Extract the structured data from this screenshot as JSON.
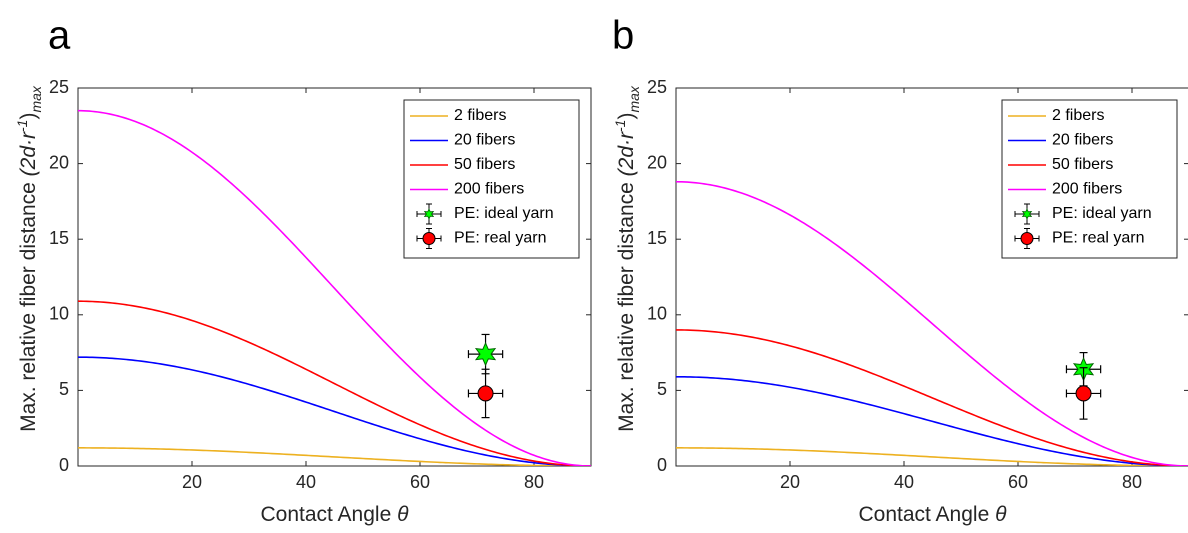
{
  "chart_data": [
    {
      "panel": "a",
      "type": "line",
      "xlabel_text": "Contact Angle",
      "xlabel_symbol": "θ",
      "ylabel_text": "Max. relative fiber distance",
      "ylabel_expr": "(2d·r",
      "ylabel_sup": "-1",
      "ylabel_close": ")",
      "ylabel_sub": "max",
      "xlim": [
        0,
        90
      ],
      "ylim": [
        0,
        25
      ],
      "xticks": [
        20,
        40,
        60,
        80
      ],
      "yticks": [
        0,
        5,
        10,
        15,
        20,
        25
      ],
      "grid": false,
      "legend_position": "top-right",
      "series": [
        {
          "name": "2 fibers",
          "color": "#EDB120",
          "max": 1.2
        },
        {
          "name": "20 fibers",
          "color": "#0000FF",
          "max": 7.2
        },
        {
          "name": "50 fibers",
          "color": "#FF0000",
          "max": 10.9
        },
        {
          "name": "200 fibers",
          "color": "#FF00FF",
          "max": 23.5
        }
      ],
      "points": [
        {
          "name": "PE: ideal yarn",
          "marker": "star",
          "color": "#00FF00",
          "x": 71.5,
          "y": 7.4,
          "xerr": 3,
          "yerr": 1.3
        },
        {
          "name": "PE: real yarn",
          "marker": "circle",
          "color": "#FF0000",
          "x": 71.5,
          "y": 4.8,
          "xerr": 3,
          "yerr": 1.6
        }
      ]
    },
    {
      "panel": "b",
      "type": "line",
      "xlabel_text": "Contact Angle",
      "xlabel_symbol": "θ",
      "ylabel_text": "Max. relative fiber distance",
      "ylabel_expr": "(2d·r",
      "ylabel_sup": "-1",
      "ylabel_close": ")",
      "ylabel_sub": "max",
      "xlim": [
        0,
        90
      ],
      "ylim": [
        0,
        25
      ],
      "xticks": [
        20,
        40,
        60,
        80
      ],
      "yticks": [
        0,
        5,
        10,
        15,
        20,
        25
      ],
      "grid": false,
      "legend_position": "top-right",
      "series": [
        {
          "name": "2 fibers",
          "color": "#EDB120",
          "max": 1.2
        },
        {
          "name": "20 fibers",
          "color": "#0000FF",
          "max": 5.9
        },
        {
          "name": "50 fibers",
          "color": "#FF0000",
          "max": 9.0
        },
        {
          "name": "200 fibers",
          "color": "#FF00FF",
          "max": 18.8
        }
      ],
      "points": [
        {
          "name": "PE: ideal yarn",
          "marker": "star",
          "color": "#00FF00",
          "x": 71.5,
          "y": 6.4,
          "xerr": 3,
          "yerr": 1.1
        },
        {
          "name": "PE: real yarn",
          "marker": "circle",
          "color": "#FF0000",
          "x": 71.5,
          "y": 4.8,
          "xerr": 3,
          "yerr": 1.7
        }
      ]
    }
  ]
}
